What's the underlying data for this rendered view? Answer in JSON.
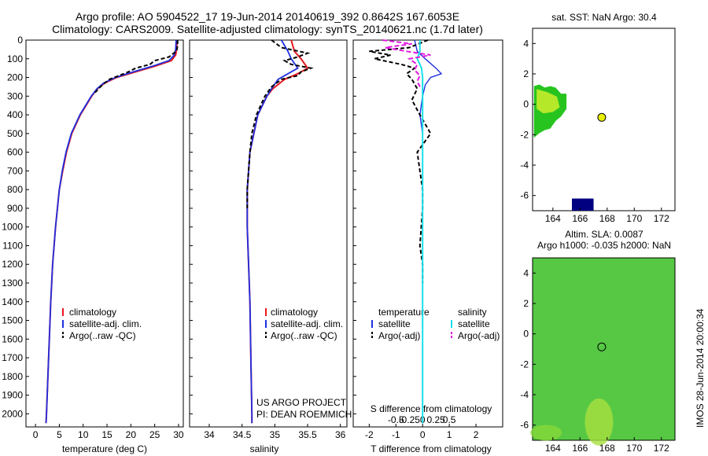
{
  "header": {
    "title_line1": "Argo profile: AO 5904522_17 19-Jun-2014 20140619_392 0.8642S 167.6053E",
    "title_line2": "Climatology: CARS2009. Satellite-adjusted climatology: synTS_20140621.nc (1.7d later)"
  },
  "colors": {
    "climatology": "#e8191c",
    "satellite": "#1f2fe0",
    "argo": "#000000",
    "salinity_sat": "#19e0e8",
    "salinity_argo": "#e019e0",
    "sst_yellow": "#e8f000",
    "sst_green": "#27c41f",
    "sla_green": "#3fc43c",
    "deep_blue": "#000080"
  },
  "credits": {
    "project": "US ARGO PROJECT",
    "pi": "PI: DEAN ROEMMICH"
  },
  "watermark": "IMOS 28-Jun-2014 20:00:34",
  "chart_data": [
    {
      "id": "temperature-profile",
      "type": "line",
      "xlabel": "temperature (deg C)",
      "ylabel": "",
      "xlim": [
        -2,
        31
      ],
      "ylim": [
        2070,
        0
      ],
      "xticks": [
        0,
        5,
        10,
        15,
        20,
        25,
        30
      ],
      "yticks": [
        0,
        100,
        200,
        300,
        400,
        500,
        600,
        700,
        800,
        900,
        1000,
        1100,
        1200,
        1300,
        1400,
        1500,
        1600,
        1700,
        1800,
        1900,
        2000
      ],
      "legend": [
        "climatology",
        "satellite-adj. clim.",
        "Argo(..raw -QC)"
      ],
      "series": [
        {
          "name": "climatology",
          "depth": [
            0,
            50,
            80,
            110,
            140,
            170,
            200,
            230,
            260,
            300,
            400,
            500,
            600,
            700,
            800,
            900,
            1000,
            1200,
            1400,
            1600,
            1800,
            2000,
            2050
          ],
          "values": [
            29.7,
            29.6,
            29.4,
            28.5,
            25.0,
            21.0,
            17.0,
            14.5,
            13.0,
            11.8,
            9.4,
            7.6,
            6.5,
            5.7,
            5.0,
            4.6,
            4.2,
            3.6,
            3.2,
            2.9,
            2.6,
            2.3,
            2.2
          ]
        },
        {
          "name": "satellite",
          "depth": [
            0,
            50,
            80,
            110,
            140,
            170,
            200,
            230,
            260,
            300,
            400,
            500,
            600,
            700,
            800,
            900,
            1000,
            1200,
            1400,
            1600,
            1800,
            2000,
            2050
          ],
          "values": [
            29.5,
            29.4,
            29.1,
            28.0,
            24.5,
            20.5,
            16.8,
            14.3,
            12.9,
            11.7,
            9.3,
            7.5,
            6.4,
            5.6,
            5.0,
            4.6,
            4.2,
            3.6,
            3.2,
            2.9,
            2.6,
            2.3,
            2.2
          ]
        },
        {
          "name": "argo",
          "depth": [
            0,
            30,
            60,
            70,
            90,
            110,
            130,
            150,
            170,
            190,
            210,
            240,
            280
          ],
          "values": [
            29.8,
            29.8,
            29.6,
            29.0,
            28.0,
            25.0,
            24.0,
            21.0,
            19.5,
            17.5,
            15.5,
            14.0,
            12.5
          ]
        }
      ]
    },
    {
      "id": "salinity-profile",
      "type": "line",
      "xlabel": "salinity",
      "ylabel": "",
      "xlim": [
        33.7,
        36.1
      ],
      "ylim": [
        2070,
        0
      ],
      "xticks": [
        34,
        34.5,
        35,
        35.5,
        36
      ],
      "legend": [
        "climatology",
        "satellite-adj. clim.",
        "Argo(..raw -QC)"
      ],
      "series": [
        {
          "name": "climatology",
          "depth": [
            0,
            60,
            100,
            150,
            180,
            210,
            260,
            300,
            400,
            500,
            600,
            700,
            800,
            1000,
            1200,
            1400,
            1600,
            1800,
            2000,
            2050
          ],
          "values": [
            35.25,
            35.3,
            35.4,
            35.5,
            35.35,
            35.15,
            34.97,
            34.88,
            34.74,
            34.68,
            34.62,
            34.6,
            34.58,
            34.58,
            34.6,
            34.62,
            34.63,
            34.64,
            34.65,
            34.65
          ]
        },
        {
          "name": "satellite",
          "depth": [
            0,
            60,
            100,
            150,
            180,
            210,
            260,
            300,
            400,
            500,
            600,
            700,
            800,
            1000,
            1200,
            1400,
            1600,
            1800,
            2000,
            2050
          ],
          "values": [
            35.1,
            35.2,
            35.25,
            35.35,
            35.2,
            35.05,
            34.95,
            34.88,
            34.74,
            34.68,
            34.62,
            34.6,
            34.58,
            34.58,
            34.6,
            34.62,
            34.63,
            34.64,
            34.65,
            34.65
          ]
        },
        {
          "name": "argo",
          "depth": [
            0,
            40,
            70,
            90,
            110,
            130,
            150,
            170,
            190,
            210,
            250,
            300,
            400,
            500,
            600,
            700,
            800,
            900
          ],
          "values": [
            34.95,
            35.1,
            35.5,
            35.35,
            35.15,
            35.25,
            35.55,
            35.4,
            35.35,
            35.1,
            34.95,
            34.85,
            34.72,
            34.65,
            34.62,
            34.6,
            34.58,
            34.58
          ]
        }
      ]
    },
    {
      "id": "difference-profile",
      "type": "line",
      "xlabel": "T difference from climatology",
      "top_xlabel": "S difference from climatology",
      "xlim": [
        -2.6,
        3.0
      ],
      "ylim": [
        2070,
        0
      ],
      "xticks": [
        -2,
        -1,
        0,
        1,
        2
      ],
      "top_xticks": [
        -0.5,
        -0.25,
        0,
        0.25,
        0.5
      ],
      "legend_temperature": [
        "temperature",
        "satellite",
        "Argo(-adj)"
      ],
      "legend_salinity": [
        "salinity",
        "satellite",
        "Argo(-adj)"
      ],
      "series": [
        {
          "name": "T satellite",
          "depth": [
            0,
            60,
            100,
            150,
            180,
            200,
            240,
            300,
            400,
            500,
            700,
            1000,
            1500,
            2000,
            2050
          ],
          "values": [
            -0.3,
            -0.2,
            0.1,
            0.5,
            0.7,
            0.3,
            0.1,
            0.0,
            -0.1,
            0.0,
            0.0,
            0.0,
            0.0,
            0.0,
            0.0
          ]
        },
        {
          "name": "T Argo",
          "depth": [
            0,
            40,
            60,
            80,
            100,
            130,
            150,
            180,
            210,
            260,
            320,
            400,
            500,
            600,
            700,
            800,
            900,
            1100,
            1200,
            1300
          ],
          "values": [
            0.2,
            -0.5,
            -2.0,
            -1.2,
            -1.8,
            -0.8,
            -0.3,
            -0.6,
            -0.4,
            -0.2,
            -0.4,
            -0.1,
            0.3,
            -0.2,
            -0.1,
            0.0,
            0.0,
            -0.1,
            0.0,
            0.0
          ]
        },
        {
          "name": "S satellite",
          "depth": [
            0,
            60,
            100,
            150,
            200,
            300,
            500,
            800,
            1200,
            1600,
            2000,
            2050
          ],
          "values": [
            -0.05,
            -0.05,
            -0.1,
            -0.02,
            0.0,
            0.0,
            0.0,
            0.0,
            0.0,
            0.0,
            0.0,
            0.0
          ]
        },
        {
          "name": "S Argo",
          "depth": [
            0,
            20,
            40,
            60,
            80,
            100,
            130,
            160,
            190,
            220,
            250
          ],
          "values": [
            -0.75,
            -0.2,
            -0.7,
            -0.3,
            0.15,
            -0.25,
            -0.1,
            -0.15,
            -0.05,
            -0.1,
            -0.05
          ]
        }
      ]
    },
    {
      "id": "sst-map",
      "type": "heatmap",
      "title": "sat. SST: NaN Argo: 30.4",
      "xlim": [
        162.5,
        173
      ],
      "ylim": [
        -7,
        5
      ],
      "xticks": [
        164,
        166,
        168,
        170,
        172
      ],
      "yticks": [
        4,
        2,
        0,
        -2,
        -4,
        -6
      ],
      "float_position": [
        167.6,
        -0.86
      ]
    },
    {
      "id": "sla-map",
      "type": "heatmap",
      "title_line1": "Altim. SLA: 0.0087",
      "title_line2": "Argo h1000: -0.035 h2000: NaN",
      "xlim": [
        162.5,
        173
      ],
      "ylim": [
        -7,
        5
      ],
      "xticks": [
        164,
        166,
        168,
        170,
        172
      ],
      "yticks": [
        4,
        2,
        0,
        -2,
        -4,
        -6
      ],
      "float_position": [
        167.6,
        -0.86
      ]
    }
  ]
}
